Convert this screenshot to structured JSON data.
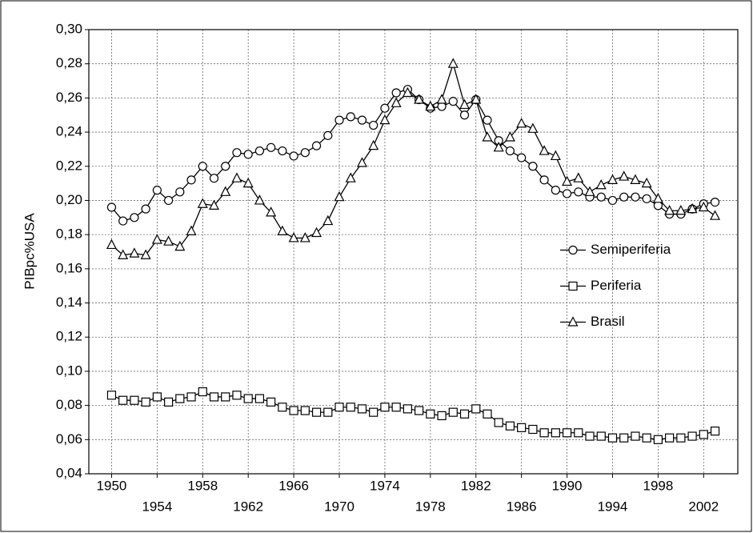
{
  "chart_data": {
    "type": "line",
    "y_label": "PIBpc%USA",
    "x": [
      1950,
      1951,
      1952,
      1953,
      1954,
      1955,
      1956,
      1957,
      1958,
      1959,
      1960,
      1961,
      1962,
      1963,
      1964,
      1965,
      1966,
      1967,
      1968,
      1969,
      1970,
      1971,
      1972,
      1973,
      1974,
      1975,
      1976,
      1977,
      1978,
      1979,
      1980,
      1981,
      1982,
      1983,
      1984,
      1985,
      1986,
      1987,
      1988,
      1989,
      1990,
      1991,
      1992,
      1993,
      1994,
      1995,
      1996,
      1997,
      1998,
      1999,
      2000,
      2001,
      2002,
      2003
    ],
    "series": [
      {
        "name": "Semiperiferia",
        "color": "#000000",
        "marker": "circle",
        "values": [
          0.196,
          0.188,
          0.19,
          0.195,
          0.206,
          0.2,
          0.205,
          0.212,
          0.22,
          0.213,
          0.22,
          0.228,
          0.227,
          0.229,
          0.231,
          0.229,
          0.226,
          0.228,
          0.232,
          0.238,
          0.247,
          0.249,
          0.247,
          0.244,
          0.254,
          0.263,
          0.265,
          0.259,
          0.254,
          0.255,
          0.258,
          0.25,
          0.259,
          0.247,
          0.235,
          0.229,
          0.225,
          0.22,
          0.212,
          0.206,
          0.204,
          0.205,
          0.202,
          0.202,
          0.2,
          0.202,
          0.202,
          0.201,
          0.197,
          0.192,
          0.192,
          0.195,
          0.198,
          0.199
        ]
      },
      {
        "name": "Periferia",
        "color": "#000000",
        "marker": "square",
        "values": [
          0.086,
          0.083,
          0.083,
          0.082,
          0.085,
          0.082,
          0.084,
          0.085,
          0.088,
          0.085,
          0.085,
          0.086,
          0.084,
          0.084,
          0.082,
          0.079,
          0.077,
          0.077,
          0.076,
          0.076,
          0.079,
          0.079,
          0.078,
          0.076,
          0.079,
          0.079,
          0.078,
          0.077,
          0.075,
          0.074,
          0.076,
          0.075,
          0.078,
          0.075,
          0.07,
          0.068,
          0.067,
          0.066,
          0.064,
          0.064,
          0.064,
          0.064,
          0.062,
          0.062,
          0.061,
          0.061,
          0.062,
          0.061,
          0.06,
          0.061,
          0.061,
          0.062,
          0.063,
          0.065
        ]
      },
      {
        "name": "Brasil",
        "color": "#000000",
        "marker": "triangle",
        "values": [
          0.174,
          0.168,
          0.169,
          0.168,
          0.177,
          0.176,
          0.173,
          0.182,
          0.198,
          0.197,
          0.205,
          0.213,
          0.21,
          0.2,
          0.193,
          0.182,
          0.178,
          0.178,
          0.181,
          0.188,
          0.202,
          0.213,
          0.222,
          0.232,
          0.247,
          0.257,
          0.263,
          0.259,
          0.255,
          0.259,
          0.28,
          0.256,
          0.259,
          0.237,
          0.231,
          0.237,
          0.245,
          0.242,
          0.229,
          0.226,
          0.211,
          0.213,
          0.205,
          0.209,
          0.212,
          0.214,
          0.212,
          0.21,
          0.201,
          0.194,
          0.194,
          0.195,
          0.196,
          0.191
        ]
      }
    ],
    "xlim": [
      1948,
      2005
    ],
    "xticks": [
      1950,
      1954,
      1958,
      1962,
      1966,
      1970,
      1974,
      1978,
      1982,
      1986,
      1990,
      1994,
      1998,
      2002
    ],
    "ylim": [
      0.04,
      0.3
    ],
    "yticks": [
      {
        "value": 0.04,
        "label": "0,04"
      },
      {
        "value": 0.06,
        "label": "0,06"
      },
      {
        "value": 0.08,
        "label": "0,08"
      },
      {
        "value": 0.1,
        "label": "0,10"
      },
      {
        "value": 0.12,
        "label": "0,12"
      },
      {
        "value": 0.14,
        "label": "0,14"
      },
      {
        "value": 0.16,
        "label": "0,16"
      },
      {
        "value": 0.18,
        "label": "0,18"
      },
      {
        "value": 0.2,
        "label": "0,20"
      },
      {
        "value": 0.22,
        "label": "0,22"
      },
      {
        "value": 0.24,
        "label": "0,24"
      },
      {
        "value": 0.26,
        "label": "0,26"
      },
      {
        "value": 0.28,
        "label": "0,28"
      },
      {
        "value": 0.3,
        "label": "0,30"
      }
    ],
    "grid": true,
    "legend": "center right"
  }
}
